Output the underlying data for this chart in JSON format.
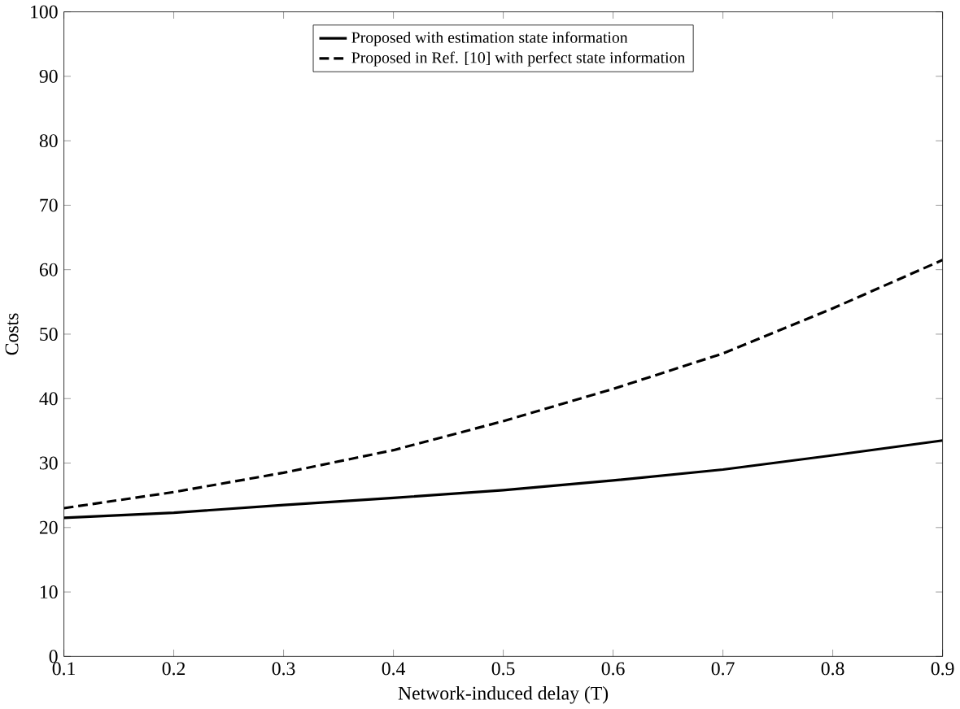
{
  "chart_data": {
    "type": "line",
    "xlabel": "Network-induced delay (T)",
    "ylabel": "Costs",
    "x": [
      0.1,
      0.2,
      0.3,
      0.4,
      0.5,
      0.6,
      0.7,
      0.8,
      0.9
    ],
    "series": [
      {
        "name": "Proposed with estimation state information",
        "color": "#000000",
        "line_style": "solid",
        "values": [
          21.5,
          22.3,
          23.5,
          24.6,
          25.8,
          27.3,
          29,
          31.2,
          33.5
        ]
      },
      {
        "name": "Proposed in Ref. [10] with perfect state information",
        "color": "#000000",
        "line_style": "dashed",
        "values": [
          23,
          25.5,
          28.5,
          32,
          36.5,
          41.5,
          47,
          54,
          61.5
        ]
      }
    ],
    "xlim": [
      0.1,
      0.9
    ],
    "xticks": [
      0.1,
      0.2,
      0.3,
      0.4,
      0.5,
      0.6,
      0.7,
      0.8,
      0.9
    ],
    "ylim": [
      0,
      100
    ],
    "yticks": [
      0,
      10,
      20,
      30,
      40,
      50,
      60,
      70,
      80,
      90,
      100
    ],
    "grid": false,
    "legend": "top",
    "marker": "none"
  }
}
